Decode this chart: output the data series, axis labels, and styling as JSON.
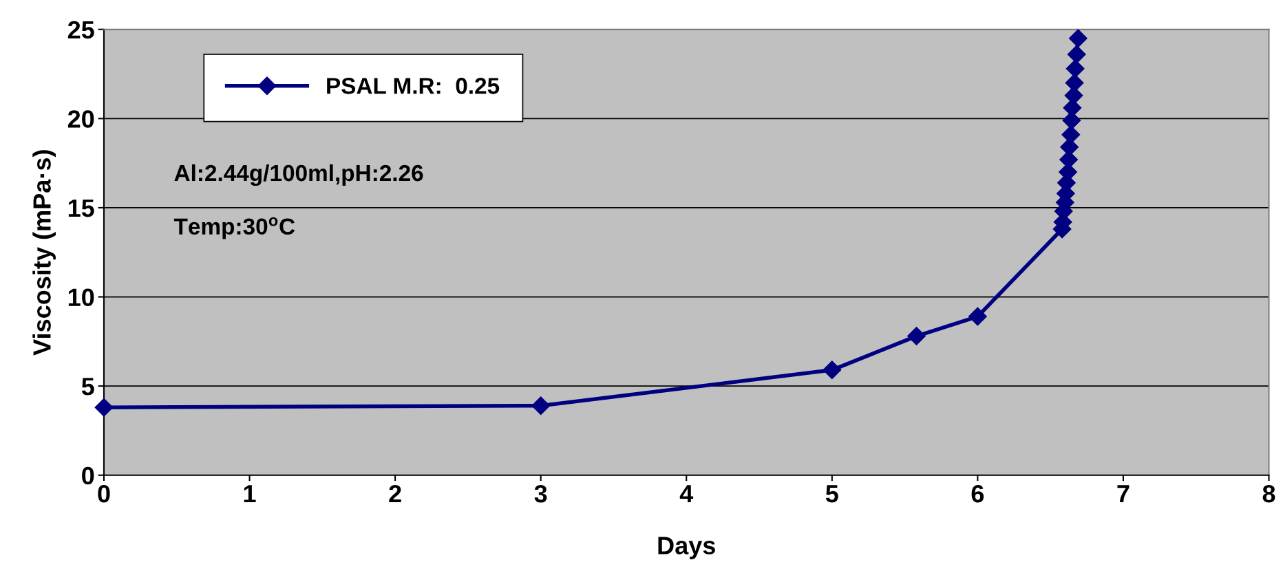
{
  "chart_data": {
    "type": "line",
    "xlabel": "Days",
    "ylabel": "Viscosity (mPa·s)",
    "x": [
      0,
      3,
      5,
      5.58,
      6,
      6.58,
      6.585,
      6.59,
      6.6,
      6.605,
      6.61,
      6.62,
      6.625,
      6.63,
      6.64,
      6.645,
      6.65,
      6.66,
      6.665,
      6.67,
      6.68,
      6.69
    ],
    "series": [
      {
        "name": "PSAL M.R:  0.25",
        "color": "#000080",
        "values": [
          3.8,
          3.9,
          5.9,
          7.8,
          8.9,
          13.8,
          14.2,
          14.8,
          15.3,
          15.8,
          16.4,
          17.0,
          17.7,
          18.4,
          19.1,
          19.9,
          20.6,
          21.3,
          22.0,
          22.8,
          23.6,
          24.5
        ]
      }
    ],
    "xlim": [
      0,
      8
    ],
    "xticks": [
      0,
      1,
      2,
      3,
      4,
      5,
      6,
      7,
      8
    ],
    "ylim": [
      0,
      25
    ],
    "yticks": [
      0,
      5,
      10,
      15,
      20,
      25
    ],
    "grid": "y",
    "legend": "top left",
    "marker": "diamond",
    "line_style": "solid",
    "annotations": [
      "Al:2.44g/100ml,pH:2.26",
      "Temp:30$^{o}$C"
    ]
  }
}
